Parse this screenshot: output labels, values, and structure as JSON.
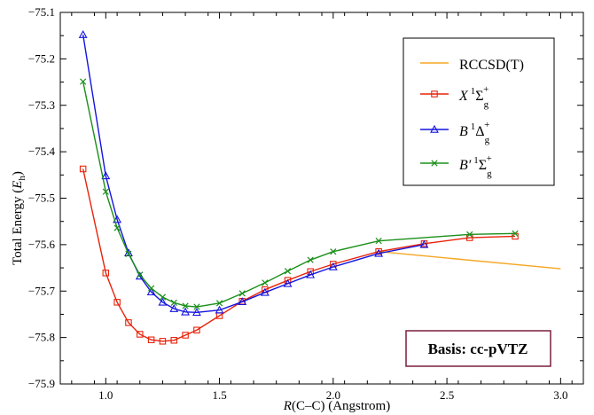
{
  "chart_data": {
    "type": "line",
    "xlabel": "R(C–C)  (Angstrom)",
    "xlabel_italic": "R",
    "xlabel_rest": "(C–C)  (Angstrom)",
    "ylabel_prefix": "Total Energy (",
    "ylabel_italic": "E",
    "ylabel_sub": "h",
    "ylabel_suffix": ")",
    "xlim": [
      0.8,
      3.1
    ],
    "ylim": [
      -75.9,
      -75.1
    ],
    "xticks": [
      1.0,
      1.5,
      2.0,
      2.5,
      3.0
    ],
    "xtick_labels": [
      "1.0",
      "1.5",
      "2.0",
      "2.5",
      "3.0"
    ],
    "yticks": [
      -75.1,
      -75.2,
      -75.3,
      -75.4,
      -75.5,
      -75.6,
      -75.7,
      -75.8,
      -75.9
    ],
    "ytick_labels": [
      "−75.1",
      "−75.2",
      "−75.3",
      "−75.4",
      "−75.5",
      "−75.6",
      "−75.7",
      "−75.8",
      "−75.9"
    ],
    "grid": false,
    "legend_position": "top-right",
    "annotation": "Basis: cc-pVTZ",
    "annotation_border_color": "#7a1f3d",
    "series": [
      {
        "name": "RCCSD(T)",
        "label_main": "RCCSD(T)",
        "color": "#f5a623",
        "marker": "none",
        "x": [
          2.2,
          3.0
        ],
        "y": [
          -75.615,
          -75.652
        ]
      },
      {
        "name": "X 1Σg+",
        "label_italic": "X",
        "label_sup1": "1",
        "label_symbol": "Σ",
        "label_sub": "g",
        "label_sup2": "+",
        "color": "#e8220a",
        "marker": "square",
        "x": [
          0.9,
          1.0,
          1.05,
          1.1,
          1.15,
          1.2,
          1.25,
          1.3,
          1.35,
          1.4,
          1.5,
          1.6,
          1.7,
          1.8,
          1.9,
          2.0,
          2.2,
          2.4,
          2.6,
          2.8
        ],
        "y": [
          -75.437,
          -75.661,
          -75.724,
          -75.768,
          -75.793,
          -75.805,
          -75.808,
          -75.806,
          -75.795,
          -75.784,
          -75.753,
          -75.722,
          -75.697,
          -75.677,
          -75.658,
          -75.642,
          -75.615,
          -75.598,
          -75.585,
          -75.582
        ]
      },
      {
        "name": "B 1Δg+",
        "label_italic": "B",
        "label_sup1": "1",
        "label_symbol": "Δ",
        "label_sub": "g",
        "label_sup2": "+",
        "color": "#1414e0",
        "marker": "triangle",
        "x": [
          0.9,
          1.0,
          1.05,
          1.1,
          1.15,
          1.2,
          1.25,
          1.3,
          1.35,
          1.4,
          1.5,
          1.6,
          1.7,
          1.8,
          1.9,
          2.0,
          2.2,
          2.4
        ],
        "y": [
          -75.148,
          -75.452,
          -75.546,
          -75.618,
          -75.668,
          -75.702,
          -75.724,
          -75.738,
          -75.745,
          -75.746,
          -75.741,
          -75.723,
          -75.703,
          -75.684,
          -75.665,
          -75.648,
          -75.619,
          -75.6
        ]
      },
      {
        "name": "B′ 1Σg+",
        "label_italic": "B′",
        "label_sup1": "1",
        "label_symbol": "Σ",
        "label_sub": "g",
        "label_sup2": "+",
        "color": "#1a8f1a",
        "marker": "x",
        "x": [
          0.9,
          1.0,
          1.05,
          1.1,
          1.15,
          1.2,
          1.25,
          1.3,
          1.35,
          1.4,
          1.5,
          1.6,
          1.7,
          1.8,
          1.9,
          2.0,
          2.2,
          2.6,
          2.8
        ],
        "y": [
          -75.249,
          -75.486,
          -75.564,
          -75.62,
          -75.665,
          -75.694,
          -75.713,
          -75.725,
          -75.732,
          -75.734,
          -75.726,
          -75.705,
          -75.682,
          -75.657,
          -75.633,
          -75.615,
          -75.592,
          -75.578,
          -75.576
        ]
      }
    ]
  }
}
